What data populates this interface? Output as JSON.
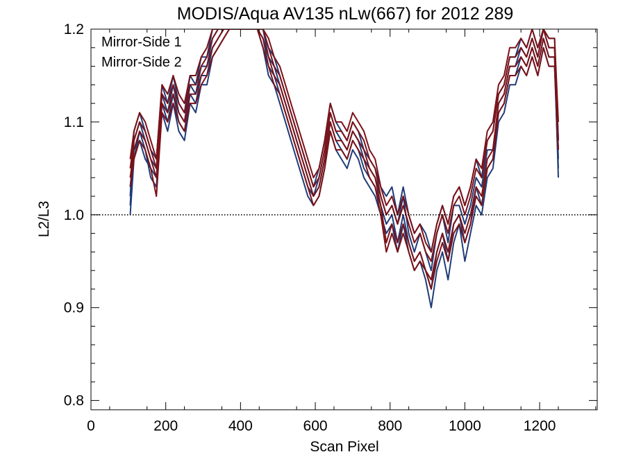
{
  "chart_data": {
    "type": "line",
    "title": "MODIS/Aqua AV135 nLw(667) for 2012 289",
    "xlabel": "Scan Pixel",
    "ylabel": "L2/L3",
    "xlim": [
      0,
      1354
    ],
    "ylim": [
      0.79,
      1.2
    ],
    "xticks": [
      0,
      200,
      400,
      600,
      800,
      1000,
      1200
    ],
    "xtick_labels": [
      "0",
      "200",
      "400",
      "600",
      "800",
      "1000",
      "1200"
    ],
    "yticks": [
      0.8,
      0.9,
      1.0,
      1.1,
      1.2
    ],
    "ytick_labels": [
      "0.8",
      "0.9",
      "1.0",
      "1.1",
      "1.2"
    ],
    "reference_line": {
      "y": 1.0,
      "style": "dotted"
    },
    "grid": false,
    "legend_position": "top-left",
    "colors": {
      "Mirror-Side 1": "#1f3c78",
      "Mirror-Side 2": "#7a1218"
    },
    "profile_x": [
      105,
      115,
      130,
      145,
      160,
      175,
      190,
      205,
      220,
      235,
      250,
      265,
      280,
      295,
      310,
      325,
      340,
      355,
      370,
      385,
      400,
      415,
      430,
      445,
      460,
      475,
      490,
      505,
      520,
      535,
      550,
      565,
      580,
      595,
      610,
      625,
      640,
      655,
      670,
      685,
      700,
      715,
      730,
      745,
      760,
      775,
      790,
      805,
      820,
      835,
      850,
      865,
      880,
      895,
      910,
      925,
      940,
      955,
      970,
      985,
      1000,
      1015,
      1030,
      1045,
      1060,
      1075,
      1090,
      1105,
      1120,
      1135,
      1150,
      1165,
      1180,
      1195,
      1210,
      1225,
      1240,
      1250
    ],
    "series": [
      {
        "name": "Mirror-Side 1",
        "values": [
          [
            1.0,
            1.06,
            1.09,
            1.07,
            1.04,
            1.03,
            1.12,
            1.1,
            1.13,
            1.1,
            1.09,
            1.13,
            1.12,
            1.15,
            1.15,
            1.18,
            1.19,
            1.2,
            1.2,
            1.2,
            1.2,
            1.2,
            1.2,
            1.2,
            1.19,
            1.16,
            1.15,
            1.13,
            1.11,
            1.09,
            1.07,
            1.05,
            1.03,
            1.02,
            1.03,
            1.06,
            1.1,
            1.08,
            1.07,
            1.06,
            1.08,
            1.07,
            1.05,
            1.04,
            1.03,
            1.01,
            0.99,
            1.0,
            0.97,
            1.0,
            0.97,
            0.95,
            0.96,
            0.94,
            0.92,
            0.96,
            0.98,
            0.95,
            0.99,
            1.0,
            0.97,
            0.99,
            1.03,
            1.01,
            1.05,
            1.06,
            1.11,
            1.12,
            1.15,
            1.15,
            1.17,
            1.16,
            1.18,
            1.16,
            1.19,
            1.17,
            1.17,
            1.04
          ],
          [
            1.01,
            1.08,
            1.1,
            1.08,
            1.06,
            1.05,
            1.13,
            1.11,
            1.14,
            1.11,
            1.1,
            1.14,
            1.13,
            1.16,
            1.16,
            1.19,
            1.2,
            1.2,
            1.2,
            1.2,
            1.2,
            1.2,
            1.2,
            1.2,
            1.2,
            1.17,
            1.16,
            1.14,
            1.12,
            1.1,
            1.08,
            1.06,
            1.04,
            1.02,
            1.04,
            1.07,
            1.11,
            1.09,
            1.08,
            1.07,
            1.09,
            1.08,
            1.06,
            1.05,
            1.04,
            1.02,
            1.0,
            1.01,
            0.99,
            1.02,
            0.98,
            0.96,
            0.98,
            0.96,
            0.94,
            0.98,
            1.0,
            0.97,
            1.01,
            1.01,
            0.99,
            1.01,
            1.04,
            1.03,
            1.07,
            1.07,
            1.12,
            1.13,
            1.16,
            1.16,
            1.18,
            1.17,
            1.19,
            1.17,
            1.2,
            1.18,
            1.18,
            1.06
          ],
          [
            1.02,
            1.09,
            1.11,
            1.09,
            1.07,
            1.06,
            1.14,
            1.12,
            1.15,
            1.12,
            1.11,
            1.15,
            1.14,
            1.17,
            1.17,
            1.2,
            1.2,
            1.2,
            1.2,
            1.2,
            1.2,
            1.2,
            1.2,
            1.2,
            1.2,
            1.18,
            1.17,
            1.15,
            1.13,
            1.11,
            1.09,
            1.07,
            1.05,
            1.03,
            1.05,
            1.08,
            1.12,
            1.1,
            1.09,
            1.08,
            1.1,
            1.09,
            1.07,
            1.06,
            1.05,
            1.03,
            1.02,
            1.03,
            1.0,
            1.03,
            1.0,
            0.98,
            0.99,
            0.98,
            0.96,
            0.99,
            1.01,
            0.99,
            1.02,
            1.03,
            1.01,
            1.03,
            1.06,
            1.04,
            1.08,
            1.09,
            1.13,
            1.14,
            1.17,
            1.17,
            1.19,
            1.18,
            1.2,
            1.18,
            1.2,
            1.19,
            1.19,
            1.08
          ],
          [
            1.03,
            1.07,
            1.08,
            1.06,
            1.05,
            1.04,
            1.11,
            1.09,
            1.12,
            1.09,
            1.08,
            1.12,
            1.11,
            1.14,
            1.14,
            1.17,
            1.18,
            1.19,
            1.2,
            1.2,
            1.2,
            1.2,
            1.2,
            1.2,
            1.18,
            1.15,
            1.14,
            1.12,
            1.1,
            1.08,
            1.06,
            1.04,
            1.02,
            1.01,
            1.02,
            1.05,
            1.09,
            1.07,
            1.06,
            1.05,
            1.07,
            1.06,
            1.04,
            1.03,
            1.02,
            1.0,
            0.98,
            0.99,
            0.96,
            0.99,
            0.96,
            0.94,
            0.95,
            0.93,
            0.9,
            0.94,
            0.96,
            0.93,
            0.97,
            0.99,
            0.95,
            0.98,
            1.01,
            1.0,
            1.04,
            1.05,
            1.1,
            1.11,
            1.14,
            1.14,
            1.16,
            1.15,
            1.17,
            1.15,
            1.18,
            1.16,
            1.16,
            1.05
          ]
        ]
      },
      {
        "name": "Mirror-Side 2",
        "values": [
          [
            1.05,
            1.08,
            1.1,
            1.09,
            1.07,
            1.05,
            1.13,
            1.12,
            1.14,
            1.12,
            1.11,
            1.14,
            1.14,
            1.16,
            1.17,
            1.19,
            1.2,
            1.2,
            1.2,
            1.2,
            1.2,
            1.2,
            1.2,
            1.2,
            1.2,
            1.18,
            1.16,
            1.15,
            1.13,
            1.11,
            1.09,
            1.07,
            1.05,
            1.03,
            1.04,
            1.07,
            1.11,
            1.09,
            1.09,
            1.08,
            1.1,
            1.09,
            1.08,
            1.06,
            1.05,
            1.02,
            1.0,
            1.01,
            0.99,
            1.01,
            0.99,
            0.97,
            0.98,
            0.96,
            0.95,
            0.98,
            1.0,
            0.98,
            1.01,
            1.02,
            1.0,
            1.02,
            1.05,
            1.04,
            1.08,
            1.09,
            1.13,
            1.14,
            1.17,
            1.17,
            1.18,
            1.17,
            1.19,
            1.17,
            1.2,
            1.18,
            1.18,
            1.08
          ],
          [
            1.04,
            1.07,
            1.09,
            1.08,
            1.06,
            1.04,
            1.12,
            1.11,
            1.13,
            1.11,
            1.1,
            1.13,
            1.13,
            1.15,
            1.16,
            1.18,
            1.19,
            1.2,
            1.2,
            1.2,
            1.2,
            1.2,
            1.2,
            1.2,
            1.19,
            1.17,
            1.15,
            1.14,
            1.12,
            1.1,
            1.08,
            1.06,
            1.04,
            1.02,
            1.03,
            1.06,
            1.1,
            1.08,
            1.08,
            1.07,
            1.09,
            1.08,
            1.07,
            1.05,
            1.04,
            1.01,
            0.97,
            0.99,
            0.97,
            0.99,
            0.97,
            0.95,
            0.96,
            0.94,
            0.93,
            0.96,
            0.98,
            0.96,
            0.99,
            1.0,
            0.98,
            1.0,
            1.03,
            1.02,
            1.06,
            1.07,
            1.12,
            1.13,
            1.16,
            1.16,
            1.17,
            1.16,
            1.18,
            1.16,
            1.19,
            1.17,
            1.17,
            1.07
          ],
          [
            1.06,
            1.09,
            1.11,
            1.1,
            1.08,
            1.06,
            1.14,
            1.13,
            1.15,
            1.13,
            1.12,
            1.15,
            1.15,
            1.17,
            1.18,
            1.2,
            1.2,
            1.2,
            1.2,
            1.2,
            1.2,
            1.2,
            1.2,
            1.2,
            1.2,
            1.19,
            1.17,
            1.16,
            1.14,
            1.12,
            1.1,
            1.08,
            1.06,
            1.04,
            1.05,
            1.08,
            1.12,
            1.1,
            1.1,
            1.09,
            1.11,
            1.1,
            1.09,
            1.07,
            1.06,
            1.03,
            1.01,
            1.02,
            1.0,
            1.02,
            1.0,
            0.98,
            0.99,
            0.97,
            0.96,
            0.99,
            1.01,
            0.99,
            1.02,
            1.03,
            1.01,
            1.03,
            1.06,
            1.05,
            1.09,
            1.1,
            1.14,
            1.15,
            1.18,
            1.18,
            1.19,
            1.18,
            1.2,
            1.18,
            1.2,
            1.19,
            1.19,
            1.1
          ],
          [
            1.03,
            1.06,
            1.08,
            1.07,
            1.05,
            1.02,
            1.11,
            1.1,
            1.12,
            1.1,
            1.09,
            1.12,
            1.12,
            1.14,
            1.15,
            1.17,
            1.18,
            1.19,
            1.2,
            1.2,
            1.2,
            1.2,
            1.2,
            1.2,
            1.18,
            1.16,
            1.14,
            1.13,
            1.11,
            1.09,
            1.07,
            1.05,
            1.03,
            1.01,
            1.02,
            1.05,
            1.09,
            1.07,
            1.07,
            1.06,
            1.08,
            1.07,
            1.06,
            1.04,
            1.03,
            1.0,
            0.96,
            0.98,
            0.96,
            0.98,
            0.96,
            0.94,
            0.95,
            0.94,
            0.92,
            0.95,
            0.97,
            0.95,
            0.98,
            0.99,
            0.97,
            0.99,
            1.02,
            1.01,
            1.05,
            1.06,
            1.11,
            1.12,
            1.15,
            1.15,
            1.16,
            1.15,
            1.17,
            1.15,
            1.18,
            1.16,
            1.16,
            1.07
          ]
        ]
      }
    ]
  }
}
